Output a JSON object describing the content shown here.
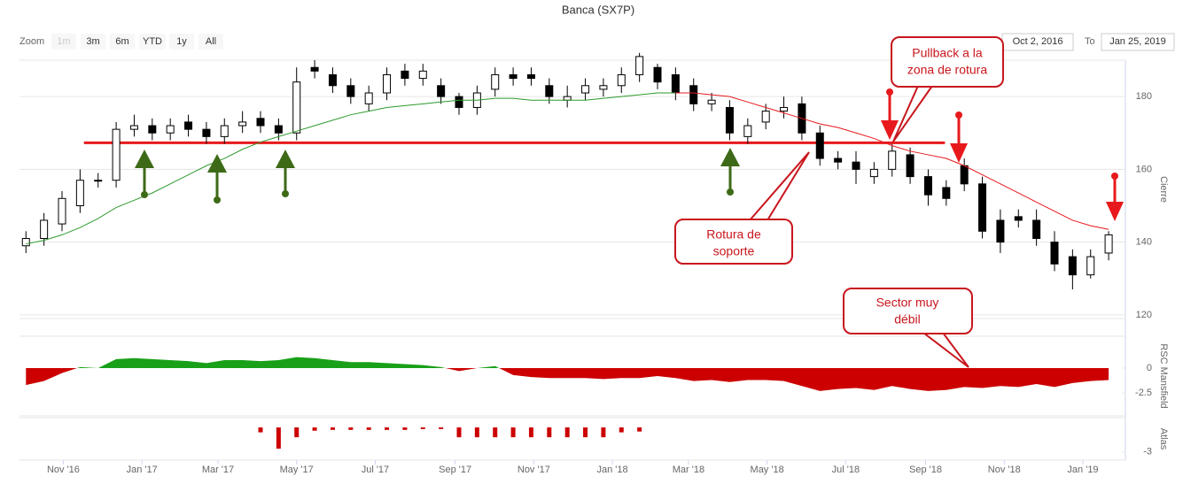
{
  "range_selector": {
    "zoom_label": "Zoom",
    "buttons": [
      "1m",
      "3m",
      "6m",
      "YTD",
      "1y",
      "All"
    ],
    "from": "Oct 2, 2016",
    "to_label": "To",
    "to": "Jan 25, 2019"
  },
  "chart_data": [
    {
      "type": "candlestick",
      "title": "Banca (SX7P)",
      "y_label": "Cierre",
      "x": [
        "2016-10-03",
        "2016-10-17",
        "2016-10-31",
        "2016-11-14",
        "2016-11-28",
        "2016-12-12",
        "2016-12-26",
        "2017-01-09",
        "2017-01-23",
        "2017-02-06",
        "2017-02-20",
        "2017-03-06",
        "2017-03-20",
        "2017-04-03",
        "2017-04-17",
        "2017-05-01",
        "2017-05-15",
        "2017-05-29",
        "2017-06-12",
        "2017-06-26",
        "2017-07-10",
        "2017-07-24",
        "2017-08-07",
        "2017-08-21",
        "2017-09-04",
        "2017-09-18",
        "2017-10-02",
        "2017-10-16",
        "2017-10-30",
        "2017-11-13",
        "2017-11-27",
        "2017-12-11",
        "2017-12-25",
        "2018-01-08",
        "2018-01-22",
        "2018-02-05",
        "2018-02-19",
        "2018-03-05",
        "2018-03-19",
        "2018-04-02",
        "2018-04-16",
        "2018-04-30",
        "2018-05-14",
        "2018-05-28",
        "2018-06-11",
        "2018-06-25",
        "2018-07-09",
        "2018-07-23",
        "2018-08-06",
        "2018-08-20",
        "2018-09-03",
        "2018-09-17",
        "2018-10-01",
        "2018-10-15",
        "2018-10-29",
        "2018-11-12",
        "2018-11-26",
        "2018-12-10",
        "2018-12-24",
        "2019-01-07",
        "2019-01-21"
      ],
      "xlim": [
        "2016-09-28",
        "2019-02-03"
      ],
      "ylim": [
        119,
        190
      ],
      "yticks": [
        120,
        140,
        160,
        180
      ],
      "grid": true,
      "series": [
        {
          "color": "#000000",
          "up_color": "#ffffff",
          "open": [
            139,
            141,
            145,
            150,
            157,
            157,
            171,
            172,
            170,
            173,
            171,
            169,
            172,
            174,
            172,
            170,
            188,
            186,
            183,
            178,
            181,
            187,
            185,
            183,
            180,
            177,
            182,
            186,
            186,
            183,
            179,
            181,
            182,
            183,
            186,
            188,
            186,
            183,
            178,
            177,
            169,
            173,
            176,
            178,
            170,
            163,
            162,
            158,
            160,
            164,
            158,
            155,
            161,
            156,
            146,
            147,
            146,
            140,
            136,
            131,
            137
          ],
          "high": [
            143,
            148,
            154,
            160,
            159,
            173,
            175,
            174,
            174,
            175,
            173,
            174,
            176,
            176,
            174,
            188,
            190,
            188,
            185,
            183,
            188,
            189,
            189,
            185,
            181,
            183,
            188,
            188,
            188,
            185,
            183,
            185,
            185,
            188,
            192,
            189,
            188,
            185,
            181,
            179,
            174,
            178,
            180,
            180,
            172,
            165,
            165,
            162,
            167,
            166,
            160,
            157,
            163,
            158,
            149,
            149,
            149,
            143,
            138,
            138,
            143
          ],
          "low": [
            137,
            139,
            143,
            148,
            155,
            155,
            169,
            168,
            168,
            169,
            167,
            167,
            170,
            170,
            168,
            168,
            185,
            181,
            178,
            176,
            179,
            183,
            183,
            178,
            175,
            175,
            180,
            183,
            183,
            178,
            177,
            179,
            180,
            181,
            184,
            182,
            179,
            176,
            176,
            168,
            167,
            171,
            174,
            168,
            161,
            160,
            156,
            156,
            158,
            156,
            150,
            150,
            154,
            141,
            137,
            144,
            139,
            132,
            127,
            130,
            135
          ],
          "close": [
            141,
            146,
            152,
            157,
            157,
            171,
            172,
            170,
            172,
            171,
            169,
            172,
            173,
            172,
            170,
            184,
            187,
            183,
            180,
            181,
            186,
            185,
            187,
            180,
            177,
            181,
            186,
            185,
            185,
            180,
            180,
            183,
            183,
            186,
            191,
            184,
            181,
            178,
            179,
            170,
            172,
            176,
            177,
            170,
            163,
            162,
            160,
            160,
            165,
            158,
            153,
            152,
            156,
            143,
            140,
            146,
            141,
            134,
            131,
            136,
            142
          ]
        },
        {
          "type": "line",
          "color": "#2e9a2e",
          "values": [
            139.5,
            140.5,
            142,
            144,
            146.5,
            149.5,
            151.5,
            153.5,
            156,
            158.5,
            161,
            163,
            165.5,
            167.5,
            169,
            170.5,
            172,
            173.5,
            175,
            176,
            177,
            177.5,
            178,
            178.5,
            179,
            179,
            179.5,
            179.5,
            179,
            179,
            179,
            179,
            179.5,
            180,
            180.5,
            181,
            181,
            null,
            null,
            null,
            null,
            null,
            null,
            null,
            null,
            null,
            null,
            null,
            null,
            null,
            null,
            null,
            null,
            null,
            null,
            null,
            null,
            null,
            null,
            null,
            null
          ]
        },
        {
          "type": "line",
          "color": "#e8191c",
          "values": [
            null,
            null,
            null,
            null,
            null,
            null,
            null,
            null,
            null,
            null,
            null,
            null,
            null,
            null,
            null,
            null,
            null,
            null,
            null,
            null,
            null,
            null,
            null,
            null,
            null,
            null,
            null,
            null,
            null,
            null,
            null,
            null,
            null,
            null,
            null,
            null,
            181,
            181,
            180.5,
            180,
            178.5,
            177,
            175.5,
            174,
            172.5,
            171.5,
            170,
            168.5,
            166.5,
            165,
            164,
            163,
            161,
            158.5,
            156,
            153.5,
            151,
            148.5,
            146,
            144.5,
            143.5
          ]
        }
      ],
      "hlines": [
        {
          "value": 167.3,
          "from": "2016-11-17",
          "to": "2018-09-16",
          "color": "#e8191c"
        }
      ],
      "annotations": [
        {
          "text": [
            "Pullback a la",
            "zona de rotura"
          ]
        },
        {
          "text": [
            "Rotura de",
            "soporte"
          ]
        },
        {
          "text": [
            "Sector muy",
            "débil"
          ]
        }
      ]
    },
    {
      "type": "area",
      "y_label": "RSC Mansfield",
      "color": "#18a018",
      "negative_color": "#cc0000",
      "x": [
        "2016-10-03",
        "2016-10-17",
        "2016-10-31",
        "2016-11-14",
        "2016-11-28",
        "2016-12-12",
        "2016-12-26",
        "2017-01-09",
        "2017-01-23",
        "2017-02-06",
        "2017-02-20",
        "2017-03-06",
        "2017-03-20",
        "2017-04-03",
        "2017-04-17",
        "2017-05-01",
        "2017-05-15",
        "2017-05-29",
        "2017-06-12",
        "2017-06-26",
        "2017-07-10",
        "2017-07-24",
        "2017-08-07",
        "2017-08-21",
        "2017-09-04",
        "2017-09-18",
        "2017-10-02",
        "2017-10-16",
        "2017-10-30",
        "2017-11-13",
        "2017-11-27",
        "2017-12-11",
        "2017-12-25",
        "2018-01-08",
        "2018-01-22",
        "2018-02-05",
        "2018-02-19",
        "2018-03-05",
        "2018-03-19",
        "2018-04-02",
        "2018-04-16",
        "2018-04-30",
        "2018-05-14",
        "2018-05-28",
        "2018-06-11",
        "2018-06-25",
        "2018-07-09",
        "2018-07-23",
        "2018-08-06",
        "2018-08-20",
        "2018-09-03",
        "2018-09-17",
        "2018-10-01",
        "2018-10-15",
        "2018-10-29",
        "2018-11-12",
        "2018-11-26",
        "2018-12-10",
        "2018-12-24",
        "2019-01-07",
        "2019-01-21"
      ],
      "xlim": [
        "2016-09-28",
        "2019-02-03"
      ],
      "ylim": [
        -4.8,
        3.2
      ],
      "yticks": [
        0,
        -2.5
      ],
      "values": [
        -1.7,
        -1.3,
        -0.5,
        0.1,
        0,
        0.9,
        1.0,
        0.9,
        0.8,
        0.7,
        0.5,
        0.8,
        0.8,
        0.7,
        0.8,
        1.1,
        1.0,
        0.8,
        0.6,
        0.6,
        0.5,
        0.4,
        0.3,
        0.1,
        -0.3,
        0,
        0.2,
        -0.7,
        -0.9,
        -1.0,
        -1.0,
        -1.0,
        -1.1,
        -1.0,
        -1.0,
        -0.8,
        -1.0,
        -1.3,
        -1.2,
        -1.4,
        -1.2,
        -1.2,
        -1.3,
        -1.8,
        -2.3,
        -2.1,
        -2.0,
        -2.2,
        -1.8,
        -2.1,
        -2.3,
        -2.2,
        -1.9,
        -2.0,
        -1.8,
        -1.9,
        -1.6,
        -1.9,
        -1.5,
        -1.3,
        -1.2
      ]
    },
    {
      "type": "bar",
      "y_label": "Atlas",
      "color": "#cc0000",
      "x": [
        "2016-10-03",
        "2016-10-17",
        "2016-10-31",
        "2016-11-14",
        "2016-11-28",
        "2016-12-12",
        "2016-12-26",
        "2017-01-09",
        "2017-01-23",
        "2017-02-06",
        "2017-02-20",
        "2017-03-06",
        "2017-03-20",
        "2017-04-03",
        "2017-04-17",
        "2017-05-01",
        "2017-05-15",
        "2017-05-29",
        "2017-06-12",
        "2017-06-26",
        "2017-07-10",
        "2017-07-24",
        "2017-08-07",
        "2017-08-21",
        "2017-09-04",
        "2017-09-18",
        "2017-10-02",
        "2017-10-16",
        "2017-10-30",
        "2017-11-13",
        "2017-11-27",
        "2017-12-11",
        "2017-12-25",
        "2018-01-08",
        "2018-01-22",
        "2018-02-05",
        "2018-02-19",
        "2018-03-05",
        "2018-03-19",
        "2018-04-02",
        "2018-04-16",
        "2018-04-30",
        "2018-05-14",
        "2018-05-28",
        "2018-06-11",
        "2018-06-25",
        "2018-07-09",
        "2018-07-23",
        "2018-08-06",
        "2018-08-20",
        "2018-09-03",
        "2018-09-17",
        "2018-10-01",
        "2018-10-15",
        "2018-10-29",
        "2018-11-12",
        "2018-11-26",
        "2018-12-10",
        "2018-12-24",
        "2019-01-07",
        "2019-01-21"
      ],
      "xlim": [
        "2016-09-28",
        "2019-02-03"
      ],
      "ylim": [
        -4.0,
        1.2
      ],
      "yticks": [
        -3
      ],
      "values": [
        null,
        null,
        null,
        null,
        null,
        null,
        null,
        null,
        null,
        null,
        null,
        null,
        null,
        -0.6,
        -2.6,
        -1.2,
        -0.4,
        -0.3,
        -0.3,
        -0.3,
        -0.3,
        -0.3,
        -0.2,
        -0.2,
        -1.2,
        -1.2,
        -1.2,
        -1.2,
        -1.2,
        -1.2,
        -1.2,
        -1.2,
        -1.2,
        -0.6,
        -0.5,
        null,
        null,
        null,
        null,
        null,
        null,
        null,
        null,
        null,
        null,
        null,
        null,
        null,
        null,
        null,
        null,
        null,
        null,
        null,
        null,
        null,
        null,
        null,
        null,
        null,
        null
      ],
      "xticks": [
        {
          "value": "2016-11",
          "label": "Nov '16"
        },
        {
          "value": "2017-01",
          "label": "Jan '17"
        },
        {
          "value": "2017-03",
          "label": "Mar '17"
        },
        {
          "value": "2017-05",
          "label": "May '17"
        },
        {
          "value": "2017-07",
          "label": "Jul '17"
        },
        {
          "value": "2017-09",
          "label": "Sep '17"
        },
        {
          "value": "2017-11",
          "label": "Nov '17"
        },
        {
          "value": "2018-01",
          "label": "Jan '18"
        },
        {
          "value": "2018-03",
          "label": "Mar '18"
        },
        {
          "value": "2018-05",
          "label": "May '18"
        },
        {
          "value": "2018-07",
          "label": "Jul '18"
        },
        {
          "value": "2018-09",
          "label": "Sep '18"
        },
        {
          "value": "2018-11",
          "label": "Nov '18"
        },
        {
          "value": "2019-01",
          "label": "Jan '19"
        }
      ]
    }
  ]
}
